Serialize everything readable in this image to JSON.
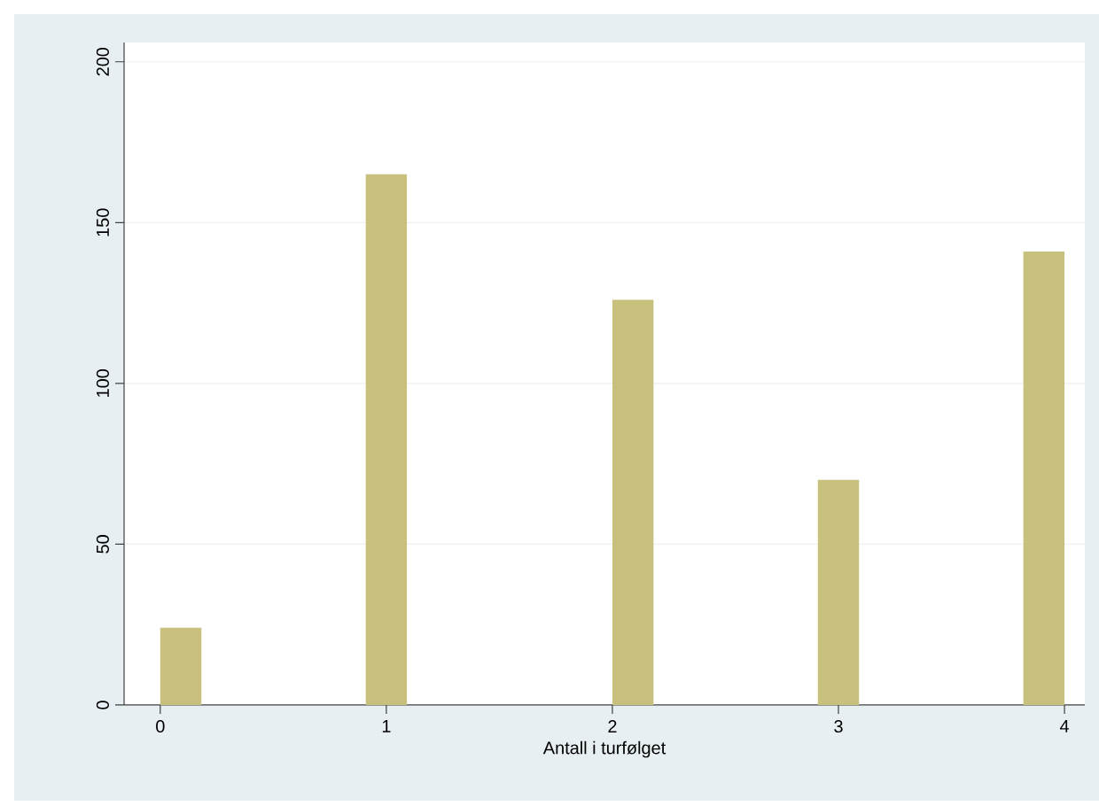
{
  "chart_data": {
    "type": "histogram",
    "xlabel": "Antall i turfølget",
    "bins": [
      0,
      0.182,
      0.364,
      0.545,
      0.727,
      0.909,
      1.091,
      1.273,
      1.455,
      1.636,
      1.818,
      2,
      2.182,
      2.364,
      2.545,
      2.727,
      2.909,
      3.091,
      3.273,
      3.455,
      3.636,
      3.818,
      4
    ],
    "values": [
      24,
      0,
      0,
      0,
      0,
      165,
      0,
      0,
      0,
      0,
      0,
      126,
      0,
      0,
      0,
      0,
      70,
      0,
      0,
      0,
      0,
      141
    ],
    "color": "#c8c17e",
    "xlim": [
      -0.16,
      4.09
    ],
    "ylim": [
      0,
      206
    ],
    "xticks": [
      0,
      1,
      2,
      3,
      4
    ],
    "yticks": [
      0,
      50,
      100,
      150,
      200
    ],
    "grid": "y"
  }
}
